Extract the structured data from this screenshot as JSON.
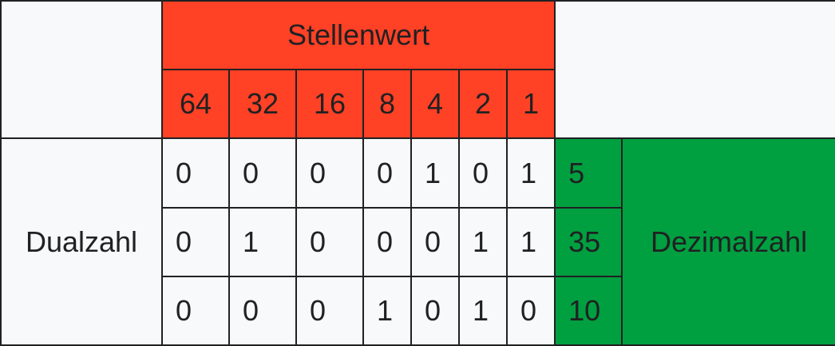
{
  "table": {
    "header_title": "Stellenwert",
    "place_values": [
      "64",
      "32",
      "16",
      "8",
      "4",
      "2",
      "1"
    ],
    "row_label": "Dualzahl",
    "column_label": "Dezimalzahl",
    "rows": [
      {
        "bits": [
          "0",
          "0",
          "0",
          "0",
          "1",
          "0",
          "1"
        ],
        "decimal": "5"
      },
      {
        "bits": [
          "0",
          "1",
          "0",
          "0",
          "0",
          "1",
          "1"
        ],
        "decimal": "35"
      },
      {
        "bits": [
          "0",
          "0",
          "0",
          "1",
          "0",
          "1",
          "0"
        ],
        "decimal": "10"
      }
    ]
  },
  "colors": {
    "header_red": "#ff4126",
    "decimal_green": "#009f40",
    "cell_background": "#f8f9fa",
    "border": "#202122"
  }
}
